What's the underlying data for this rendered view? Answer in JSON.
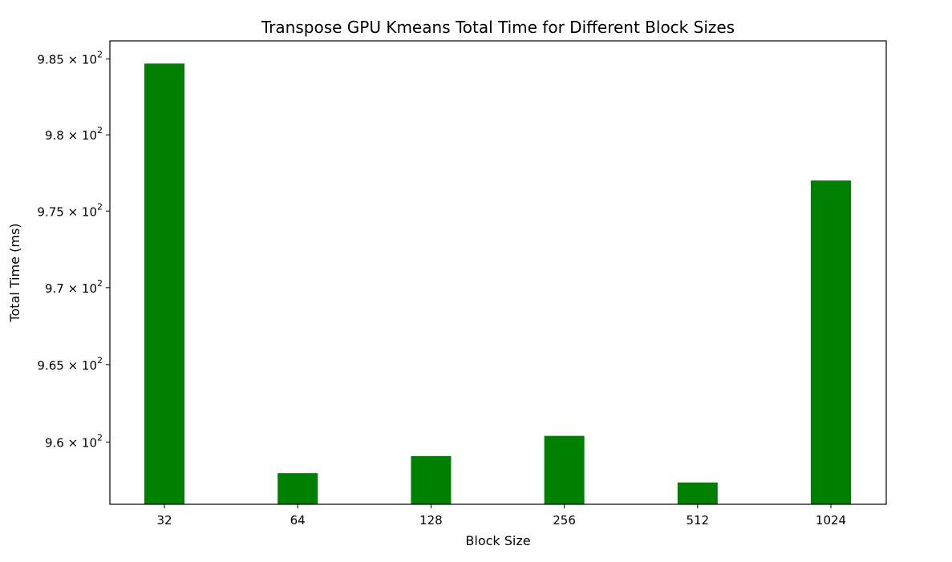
{
  "chart_data": {
    "type": "bar",
    "title": "Transpose GPU Kmeans Total Time for Different Block Sizes",
    "xlabel": "Block Size",
    "ylabel": "Total Time (ms)",
    "categories": [
      "32",
      "64",
      "128",
      "256",
      "512",
      "1024"
    ],
    "values": [
      984.7,
      958.0,
      959.1,
      960.4,
      957.4,
      977.0
    ],
    "ylim": [
      956.0,
      986.2
    ],
    "yscale": "log",
    "yticks": [
      {
        "value": 985,
        "mantissa": "9.85",
        "base": "10",
        "exp": "2"
      },
      {
        "value": 980,
        "mantissa": "9.8",
        "base": "10",
        "exp": "2"
      },
      {
        "value": 975,
        "mantissa": "9.75",
        "base": "10",
        "exp": "2"
      },
      {
        "value": 970,
        "mantissa": "9.7",
        "base": "10",
        "exp": "2"
      },
      {
        "value": 965,
        "mantissa": "9.65",
        "base": "10",
        "exp": "2"
      },
      {
        "value": 960,
        "mantissa": "9.6",
        "base": "10",
        "exp": "2"
      }
    ],
    "bar_color": "#008000",
    "grid": false,
    "legend": "none"
  }
}
